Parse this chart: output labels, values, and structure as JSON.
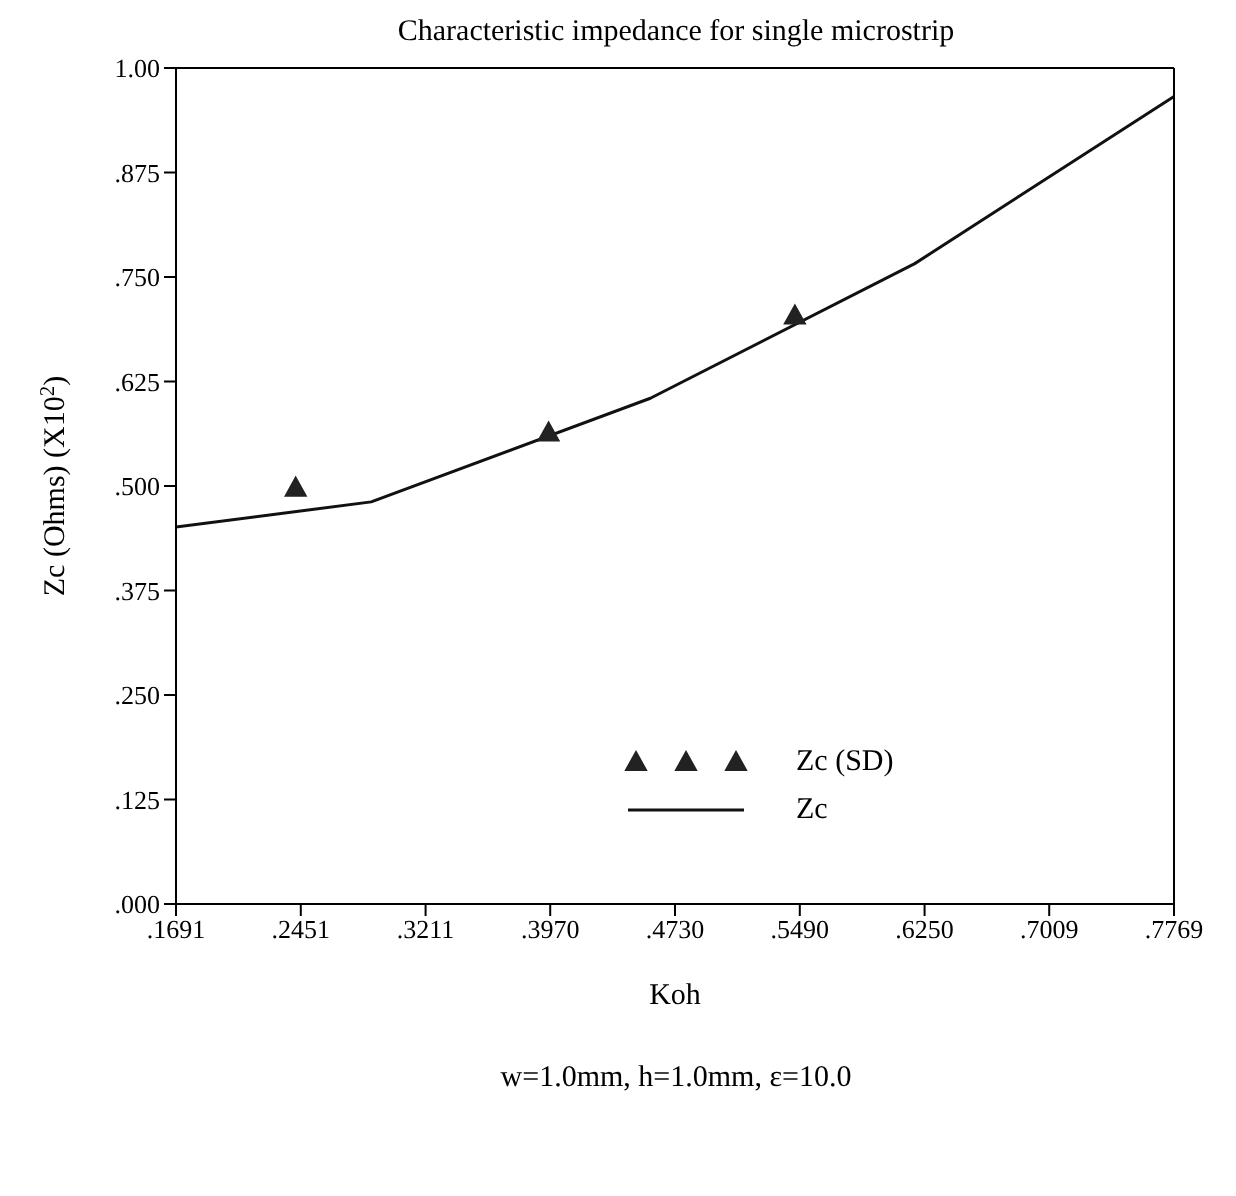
{
  "chart_data": {
    "type": "line",
    "title": "Characteristic impedance for single microstrip",
    "xlabel": "Koh",
    "ylabel": "Zc (Ohms) (X10$^{2}$)",
    "annotations": [
      "w=1.0mm, h=1.0mm, ε=10.0"
    ],
    "xlim": [
      0.1691,
      0.7769
    ],
    "xticks": [
      {
        "value": 0.1691,
        "label": ".1691"
      },
      {
        "value": 0.2451,
        "label": ".2451"
      },
      {
        "value": 0.3211,
        "label": ".3211"
      },
      {
        "value": 0.397,
        "label": ".3970"
      },
      {
        "value": 0.473,
        "label": ".4730"
      },
      {
        "value": 0.549,
        "label": ".5490"
      },
      {
        "value": 0.625,
        "label": ".6250"
      },
      {
        "value": 0.7009,
        "label": ".7009"
      },
      {
        "value": 0.7769,
        "label": ".7769"
      }
    ],
    "ylim": [
      0,
      1
    ],
    "yticks": [
      {
        "value": 0,
        "label": ".000"
      },
      {
        "value": 0.125,
        "label": ".125"
      },
      {
        "value": 0.25,
        "label": ".250"
      },
      {
        "value": 0.375,
        "label": ".375"
      },
      {
        "value": 0.5,
        "label": ".500"
      },
      {
        "value": 0.625,
        "label": ".625"
      },
      {
        "value": 0.75,
        "label": ".750"
      },
      {
        "value": 0.875,
        "label": ".875"
      },
      {
        "value": 1,
        "label": "1.00"
      }
    ],
    "legend": "bottom right",
    "series": [
      {
        "name": "Zc (SD)",
        "type": "scatter",
        "marker": "triangle",
        "color": "#222222",
        "x": [
          0.242,
          0.396,
          0.546
        ],
        "values": [
          0.498,
          0.564,
          0.704
        ]
      },
      {
        "name": "Zc",
        "marker": "none",
        "line_style": "solid",
        "color": "#111111",
        "x": [
          0.1691,
          0.288,
          0.458,
          0.619,
          0.7769
        ],
        "values": [
          0.451,
          0.481,
          0.605,
          0.766,
          0.966
        ]
      }
    ]
  }
}
